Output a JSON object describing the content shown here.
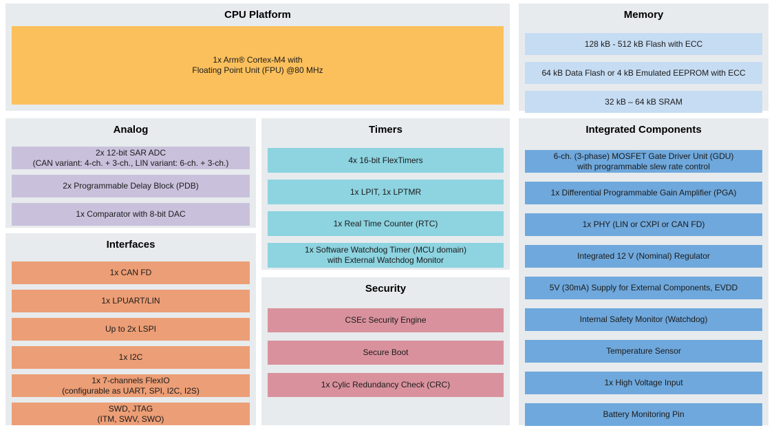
{
  "colors": {
    "panel_bg": "#e7ebed",
    "cpu_block": "#fbc05c",
    "memory_block": "#c6dcf2",
    "analog_block": "#c9c1dc",
    "timers_block": "#8dd3e0",
    "integrated_block": "#6fa8dc",
    "interfaces_block": "#ec9e76",
    "security_block": "#d9929d",
    "text": "#1a1a1a",
    "title_text": "#000000"
  },
  "sections": {
    "cpu": {
      "title": "CPU Platform",
      "items": [
        "1x Arm® Cortex-M4 with\nFloating Point Unit (FPU) @80 MHz"
      ]
    },
    "memory": {
      "title": "Memory",
      "items": [
        "128 kB - 512 kB Flash with ECC",
        "64 kB Data Flash or 4 kB Emulated EEPROM with ECC",
        "32 kB – 64 kB SRAM"
      ]
    },
    "analog": {
      "title": "Analog",
      "items": [
        "2x 12-bit SAR ADC\n(CAN variant: 4-ch. + 3-ch., LIN variant: 6-ch. + 3-ch.)",
        "2x Programmable Delay Block (PDB)",
        "1x Comparator with 8-bit DAC"
      ]
    },
    "timers": {
      "title": "Timers",
      "items": [
        "4x 16-bit FlexTimers",
        "1x LPIT, 1x LPTMR",
        "1x Real Time Counter (RTC)",
        "1x Software Watchdog Timer (MCU domain)\nwith External Watchdog Monitor"
      ]
    },
    "integrated": {
      "title": "Integrated Components",
      "items": [
        "6-ch. (3-phase) MOSFET Gate Driver Unit (GDU)\nwith programmable slew rate control",
        "1x Differential Programmable Gain Amplifier (PGA)",
        "1x PHY (LIN or CXPI or CAN FD)",
        "Integrated 12 V (Nominal) Regulator",
        "5V (30mA) Supply for External Components, EVDD",
        "Internal Safety Monitor (Watchdog)",
        "Temperature Sensor",
        "1x High Voltage Input",
        "Battery Monitoring Pin"
      ]
    },
    "interfaces": {
      "title": "Interfaces",
      "items": [
        "1x CAN FD",
        "1x LPUART/LIN",
        "Up to 2x LSPI",
        "1x I2C",
        "1x 7-channels FlexIO\n(configurable as UART, SPI, I2C, I2S)",
        "SWD, JTAG\n(ITM, SWV, SWO)"
      ]
    },
    "security": {
      "title": "Security",
      "items": [
        "CSEc Security Engine",
        "Secure Boot",
        "1x Cylic Redundancy Check (CRC)"
      ]
    }
  }
}
